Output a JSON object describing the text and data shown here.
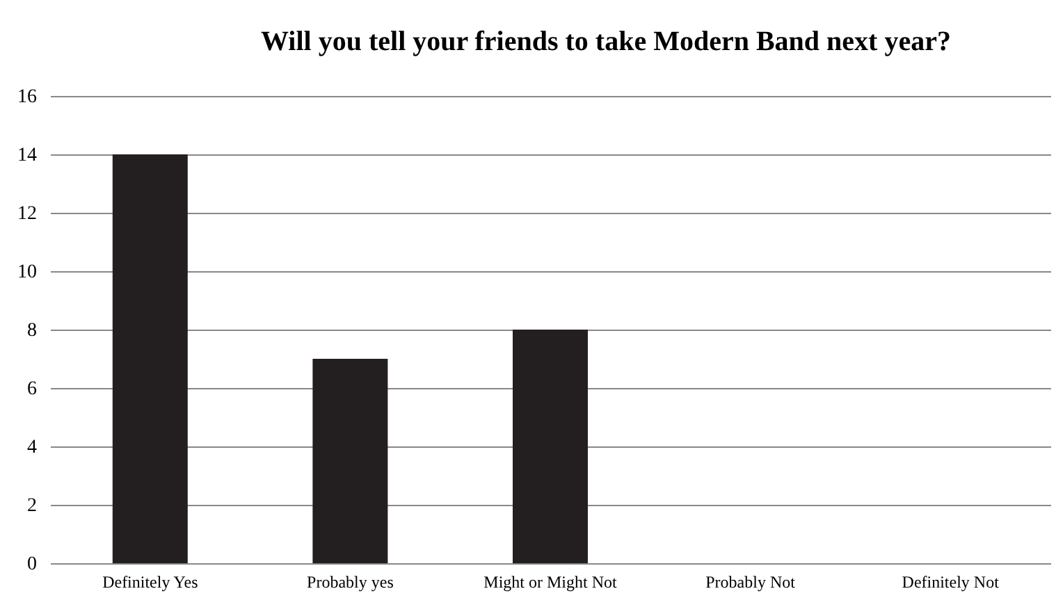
{
  "chart_data": {
    "type": "bar",
    "title": "Will you tell your friends to take Modern Band next year?",
    "categories": [
      "Definitely Yes",
      "Probably yes",
      "Might or Might Not",
      "Probably Not",
      "Definitely Not"
    ],
    "values": [
      14,
      7,
      8,
      0,
      0
    ],
    "color": "#231f20",
    "ylim": [
      0,
      16
    ],
    "yticks": [
      0,
      2,
      4,
      6,
      8,
      10,
      12,
      14,
      16
    ],
    "grid": "y"
  }
}
